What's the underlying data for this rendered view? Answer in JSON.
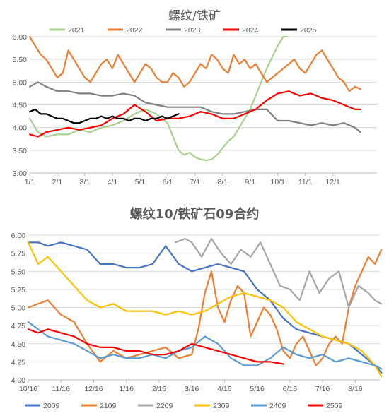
{
  "chart_data": [
    {
      "type": "line",
      "title": "螺纹/铁矿",
      "ylim": [
        3.0,
        6.0
      ],
      "yticks": [
        "3.00",
        "3.50",
        "4.00",
        "4.50",
        "5.00",
        "5.50",
        "6.00"
      ],
      "xticks": [
        "1/1",
        "2/1",
        "3/1",
        "4/1",
        "5/1",
        "6/1",
        "7/1",
        "8/1",
        "9/1",
        "10/1",
        "11/1",
        "12/1"
      ],
      "legend_position": "top",
      "grid": true,
      "series": [
        {
          "name": "2021",
          "color": "#a9d18e",
          "x": [
            0,
            0.3,
            0.6,
            1.0,
            1.4,
            1.8,
            2.2,
            2.6,
            3.0,
            3.4,
            3.8,
            4.2,
            4.6,
            5.0,
            5.2,
            5.4,
            5.6,
            5.8,
            6.0,
            6.2,
            6.4,
            6.6,
            6.8,
            7.0,
            7.2,
            7.4,
            7.6,
            7.8,
            8.0,
            8.2,
            8.4,
            8.6,
            8.8,
            9.0,
            9.2,
            9.35
          ],
          "y": [
            4.2,
            3.9,
            3.8,
            3.85,
            3.85,
            3.95,
            3.9,
            4.0,
            4.05,
            4.15,
            4.3,
            4.4,
            4.3,
            4.1,
            3.8,
            3.5,
            3.4,
            3.45,
            3.35,
            3.3,
            3.28,
            3.3,
            3.4,
            3.55,
            3.7,
            3.8,
            4.0,
            4.2,
            4.4,
            4.7,
            5.0,
            5.3,
            5.55,
            5.8,
            6.0,
            6.1
          ]
        },
        {
          "name": "2022",
          "color": "#ed7d31",
          "x": [
            0,
            0.2,
            0.4,
            0.6,
            0.8,
            1.0,
            1.2,
            1.4,
            1.6,
            1.8,
            2.0,
            2.2,
            2.4,
            2.6,
            2.8,
            3.0,
            3.2,
            3.4,
            3.6,
            3.8,
            4.0,
            4.2,
            4.4,
            4.6,
            4.8,
            5.0,
            5.2,
            5.4,
            5.6,
            5.8,
            6.0,
            6.2,
            6.4,
            6.6,
            6.8,
            7.0,
            7.2,
            7.4,
            7.6,
            7.8,
            8.0,
            8.2,
            8.4,
            8.6,
            8.8,
            9.0,
            9.2,
            9.4,
            9.6,
            9.8,
            10.0,
            10.2,
            10.4,
            10.6,
            10.8,
            11.0,
            11.2,
            11.4,
            11.6,
            11.8,
            12.0
          ],
          "y": [
            6.0,
            5.8,
            5.6,
            5.5,
            5.3,
            5.1,
            5.2,
            5.7,
            5.5,
            5.3,
            5.1,
            5.0,
            5.2,
            5.4,
            5.5,
            5.3,
            5.6,
            5.4,
            5.2,
            5.0,
            5.2,
            5.4,
            5.3,
            5.1,
            5.0,
            5.0,
            5.2,
            5.1,
            4.9,
            5.0,
            5.2,
            5.4,
            5.3,
            5.6,
            5.5,
            5.3,
            5.2,
            5.6,
            5.4,
            5.5,
            5.3,
            5.4,
            5.2,
            5.0,
            5.1,
            5.2,
            5.3,
            5.4,
            5.5,
            5.3,
            5.2,
            5.4,
            5.6,
            5.7,
            5.5,
            5.3,
            5.1,
            5.0,
            4.8,
            4.9,
            4.85
          ]
        },
        {
          "name": "2023",
          "color": "#7f7f7f",
          "x": [
            0,
            0.3,
            0.6,
            1.0,
            1.4,
            1.8,
            2.2,
            2.6,
            3.0,
            3.4,
            3.8,
            4.2,
            4.6,
            5.0,
            5.4,
            5.8,
            6.2,
            6.6,
            7.0,
            7.4,
            7.8,
            8.2,
            8.6,
            9.0,
            9.4,
            9.8,
            10.2,
            10.6,
            11.0,
            11.4,
            11.8,
            12.0
          ],
          "y": [
            4.9,
            5.0,
            4.9,
            4.8,
            4.8,
            4.75,
            4.75,
            4.7,
            4.7,
            4.75,
            4.7,
            4.55,
            4.5,
            4.45,
            4.45,
            4.45,
            4.45,
            4.35,
            4.3,
            4.3,
            4.35,
            4.4,
            4.4,
            4.15,
            4.15,
            4.1,
            4.05,
            4.1,
            4.05,
            4.1,
            4.0,
            3.9
          ]
        },
        {
          "name": "2024",
          "color": "#ff0000",
          "x": [
            0,
            0.3,
            0.6,
            1.0,
            1.4,
            1.8,
            2.2,
            2.6,
            3.0,
            3.4,
            3.8,
            4.2,
            4.6,
            5.0,
            5.4,
            5.8,
            6.2,
            6.6,
            7.0,
            7.4,
            7.8,
            8.2,
            8.6,
            9.0,
            9.4,
            9.8,
            10.2,
            10.6,
            11.0,
            11.4,
            11.8,
            12.0
          ],
          "y": [
            3.85,
            3.8,
            3.9,
            3.95,
            4.0,
            3.95,
            4.0,
            4.05,
            4.2,
            4.3,
            4.5,
            4.35,
            4.15,
            4.2,
            4.2,
            4.25,
            4.35,
            4.3,
            4.2,
            4.2,
            4.3,
            4.4,
            4.6,
            4.75,
            4.8,
            4.7,
            4.75,
            4.65,
            4.6,
            4.5,
            4.4,
            4.4
          ]
        },
        {
          "name": "2025",
          "color": "#000000",
          "x": [
            0,
            0.2,
            0.4,
            0.6,
            0.8,
            1.0,
            1.2,
            1.4,
            1.6,
            1.8,
            2.0,
            2.2,
            2.4,
            2.6,
            2.8,
            3.0,
            3.2,
            3.4,
            3.6,
            3.8,
            4.0,
            4.2,
            4.4,
            4.6,
            4.8,
            5.0,
            5.2,
            5.4
          ],
          "y": [
            4.35,
            4.4,
            4.3,
            4.3,
            4.25,
            4.2,
            4.2,
            4.15,
            4.1,
            4.1,
            4.15,
            4.2,
            4.2,
            4.25,
            4.2,
            4.25,
            4.2,
            4.2,
            4.15,
            4.2,
            4.2,
            4.15,
            4.2,
            4.2,
            4.25,
            4.2,
            4.25,
            4.3
          ]
        }
      ]
    },
    {
      "type": "line",
      "title": "螺纹10/铁矿石09合约",
      "ylim": [
        4.0,
        6.0
      ],
      "yticks": [
        "4.00",
        "4.25",
        "4.50",
        "4.75",
        "5.00",
        "5.25",
        "5.50",
        "5.75",
        "6.00"
      ],
      "xticks": [
        "10/16",
        "11/16",
        "12/16",
        "1/16",
        "2/16",
        "3/16",
        "4/16",
        "5/16",
        "6/16",
        "7/16",
        "8/16"
      ],
      "legend_position": "bottom",
      "grid": true,
      "series": [
        {
          "name": "2009",
          "color": "#4472c4",
          "x": [
            0,
            0.3,
            0.6,
            1.0,
            1.4,
            1.8,
            2.2,
            2.6,
            3.0,
            3.4,
            3.8,
            4.2,
            4.6,
            5.0,
            5.4,
            5.8,
            6.2,
            6.6,
            7.0,
            7.4,
            7.8,
            8.2,
            8.6,
            9.0,
            9.4,
            9.8,
            10.2,
            10.6,
            10.8
          ],
          "y": [
            5.9,
            5.9,
            5.85,
            5.9,
            5.85,
            5.8,
            5.6,
            5.6,
            5.55,
            5.55,
            5.6,
            5.85,
            5.6,
            5.5,
            5.55,
            5.6,
            5.55,
            5.5,
            5.25,
            5.1,
            4.85,
            4.7,
            4.65,
            4.6,
            4.55,
            4.5,
            4.35,
            4.2,
            4.1
          ]
        },
        {
          "name": "2109",
          "color": "#ed7d31",
          "x": [
            0,
            0.3,
            0.6,
            1.0,
            1.4,
            1.8,
            2.2,
            2.6,
            3.0,
            3.4,
            3.8,
            4.2,
            4.6,
            5.0,
            5.2,
            5.4,
            5.6,
            5.8,
            6.0,
            6.2,
            6.4,
            6.6,
            6.8,
            7.0,
            7.2,
            7.4,
            7.6,
            7.8,
            8.0,
            8.2,
            8.4,
            8.6,
            8.8,
            9.0,
            9.2,
            9.4,
            9.6,
            9.8,
            10.0,
            10.2,
            10.4,
            10.6,
            10.8
          ],
          "y": [
            5.0,
            5.05,
            5.1,
            4.9,
            4.8,
            4.5,
            4.25,
            4.4,
            4.3,
            4.35,
            4.4,
            4.45,
            4.3,
            4.35,
            4.7,
            5.2,
            5.5,
            5.0,
            4.8,
            5.1,
            5.3,
            5.2,
            4.6,
            4.8,
            5.0,
            4.9,
            4.7,
            4.4,
            4.3,
            4.5,
            4.6,
            4.4,
            4.2,
            4.3,
            4.5,
            4.6,
            4.5,
            5.0,
            5.3,
            5.5,
            5.7,
            5.6,
            5.8
          ]
        },
        {
          "name": "2209",
          "color": "#a5a5a5",
          "x": [
            4.5,
            4.8,
            5.0,
            5.3,
            5.6,
            5.9,
            6.2,
            6.5,
            6.8,
            7.1,
            7.4,
            7.7,
            8.0,
            8.3,
            8.6,
            8.9,
            9.2,
            9.5,
            9.8,
            10.1,
            10.4,
            10.6,
            10.8
          ],
          "y": [
            5.9,
            5.95,
            5.9,
            5.7,
            5.95,
            5.75,
            5.6,
            5.8,
            5.7,
            5.9,
            5.6,
            5.3,
            5.25,
            5.1,
            5.5,
            5.2,
            5.4,
            5.5,
            5.0,
            5.3,
            5.2,
            5.1,
            5.05
          ]
        },
        {
          "name": "2309",
          "color": "#ffc000",
          "x": [
            0,
            0.3,
            0.6,
            1.0,
            1.4,
            1.8,
            2.2,
            2.6,
            3.0,
            3.4,
            3.8,
            4.2,
            4.6,
            5.0,
            5.4,
            5.8,
            6.2,
            6.6,
            7.0,
            7.4,
            7.8,
            8.2,
            8.6,
            9.0,
            9.4,
            9.8,
            10.2,
            10.6,
            10.8
          ],
          "y": [
            5.9,
            5.6,
            5.7,
            5.5,
            5.3,
            5.1,
            5.0,
            5.05,
            4.95,
            4.95,
            4.95,
            4.9,
            4.95,
            4.9,
            4.95,
            5.05,
            5.15,
            5.2,
            5.15,
            5.1,
            5.0,
            4.8,
            4.7,
            4.6,
            4.55,
            4.5,
            4.4,
            4.2,
            4.05
          ]
        },
        {
          "name": "2409",
          "color": "#5b9bd5",
          "x": [
            0,
            0.3,
            0.6,
            1.0,
            1.4,
            1.8,
            2.2,
            2.6,
            3.0,
            3.4,
            3.8,
            4.2,
            4.6,
            5.0,
            5.4,
            5.8,
            6.2,
            6.6,
            7.0,
            7.4,
            7.8,
            8.2,
            8.6,
            9.0,
            9.4,
            9.8,
            10.2,
            10.6,
            10.8
          ],
          "y": [
            4.8,
            4.7,
            4.6,
            4.55,
            4.5,
            4.4,
            4.3,
            4.35,
            4.3,
            4.3,
            4.35,
            4.3,
            4.4,
            4.45,
            4.6,
            4.5,
            4.3,
            4.2,
            4.2,
            4.3,
            4.45,
            4.35,
            4.3,
            4.35,
            4.25,
            4.3,
            4.25,
            4.2,
            4.15
          ]
        },
        {
          "name": "2509",
          "color": "#ff0000",
          "x": [
            0,
            0.3,
            0.6,
            1.0,
            1.4,
            1.8,
            2.2,
            2.6,
            3.0,
            3.4,
            3.8,
            4.2,
            4.6,
            5.0,
            5.4,
            5.8,
            6.2,
            6.6,
            7.0,
            7.4,
            7.8
          ],
          "y": [
            4.7,
            4.65,
            4.7,
            4.65,
            4.6,
            4.5,
            4.45,
            4.45,
            4.4,
            4.4,
            4.35,
            4.35,
            4.4,
            4.5,
            4.45,
            4.4,
            4.35,
            4.3,
            4.25,
            4.25,
            4.22
          ]
        }
      ]
    }
  ]
}
